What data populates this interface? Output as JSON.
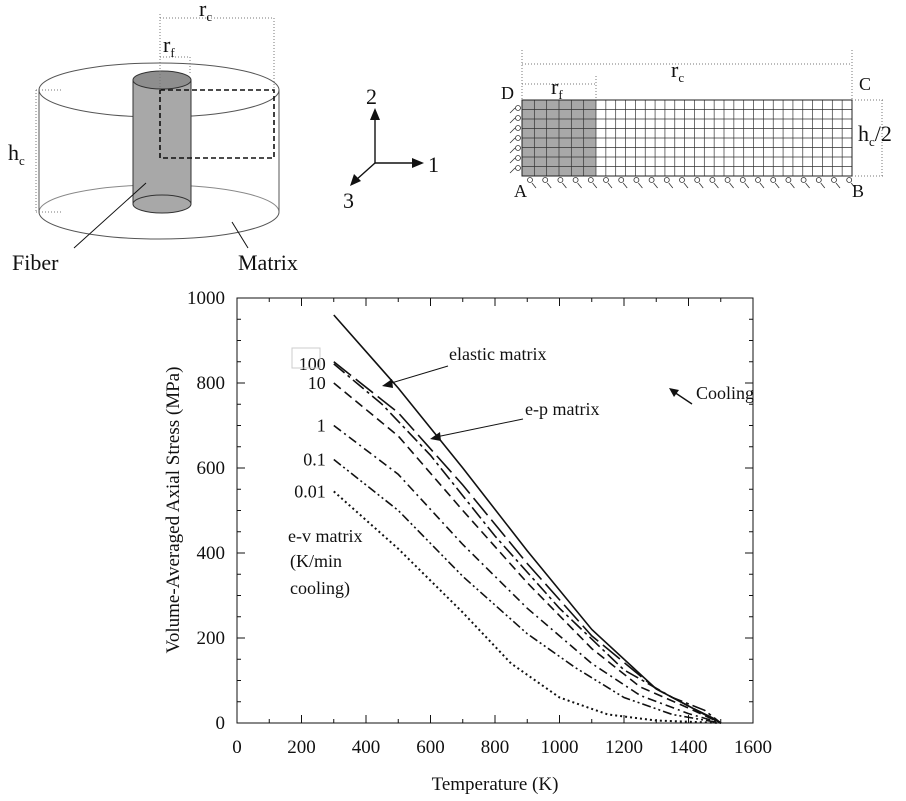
{
  "schematic": {
    "cylinder_labels": {
      "rc": "r",
      "rc_sub": "c",
      "rf": "r",
      "rf_sub": "f",
      "hc": "h",
      "hc_sub": "c",
      "fiber": "Fiber",
      "matrix": "Matrix"
    },
    "axes_labels": {
      "axis1": "1",
      "axis2": "2",
      "axis3": "3"
    },
    "mesh_labels": {
      "rc": "r",
      "rc_sub": "c",
      "rf": "r",
      "rf_sub": "f",
      "hc2": "h",
      "hc2_sub": "c",
      "hc2_suffix": "/2",
      "A": "A",
      "B": "B",
      "C": "C",
      "D": "D"
    }
  },
  "chart_data": {
    "type": "line",
    "xlabel": "Temperature (K)",
    "ylabel": "Volume-Averaged Axial Stress  (MPa)",
    "xlim": [
      0,
      1600
    ],
    "ylim": [
      0,
      1000
    ],
    "xticks": [
      "0",
      "200",
      "400",
      "600",
      "800",
      "1000",
      "1200",
      "1400",
      "1600"
    ],
    "yticks": [
      "0",
      "200",
      "400",
      "600",
      "800",
      "1000"
    ],
    "annotations": {
      "elastic": "elastic matrix",
      "ep": "e-p matrix",
      "cooling": "Cooling",
      "ev_line1": "e-v matrix",
      "ev_line2": "(K/min",
      "ev_line3": "cooling)"
    },
    "series": [
      {
        "name": "elastic matrix",
        "dash": "solid",
        "points": [
          [
            300,
            960
          ],
          [
            500,
            788
          ],
          [
            700,
            600
          ],
          [
            900,
            405
          ],
          [
            1100,
            220
          ],
          [
            1300,
            80
          ],
          [
            1450,
            20
          ],
          [
            1500,
            0
          ]
        ]
      },
      {
        "name": "e-p matrix",
        "dash": "longdash",
        "points": [
          [
            300,
            850
          ],
          [
            500,
            730
          ],
          [
            700,
            560
          ],
          [
            900,
            375
          ],
          [
            1100,
            205
          ],
          [
            1300,
            80
          ],
          [
            1400,
            40
          ],
          [
            1480,
            10
          ],
          [
            1500,
            0
          ]
        ]
      },
      {
        "name": "100",
        "dash": "dashdot",
        "points": [
          [
            300,
            845
          ],
          [
            450,
            750
          ],
          [
            600,
            630
          ],
          [
            800,
            440
          ],
          [
            1000,
            270
          ],
          [
            1200,
            125
          ],
          [
            1350,
            60
          ],
          [
            1450,
            30
          ],
          [
            1500,
            0
          ]
        ]
      },
      {
        "name": "10",
        "dash": "dash",
        "points": [
          [
            300,
            800
          ],
          [
            500,
            675
          ],
          [
            700,
            500
          ],
          [
            900,
            330
          ],
          [
            1100,
            175
          ],
          [
            1250,
            85
          ],
          [
            1400,
            35
          ],
          [
            1500,
            0
          ]
        ]
      },
      {
        "name": "1",
        "dash": "dashdot2",
        "points": [
          [
            300,
            700
          ],
          [
            500,
            585
          ],
          [
            700,
            420
          ],
          [
            900,
            270
          ],
          [
            1100,
            140
          ],
          [
            1250,
            65
          ],
          [
            1400,
            22
          ],
          [
            1500,
            0
          ]
        ]
      },
      {
        "name": "0.1",
        "dash": "dashdotdot",
        "points": [
          [
            300,
            620
          ],
          [
            500,
            500
          ],
          [
            700,
            345
          ],
          [
            900,
            210
          ],
          [
            1050,
            130
          ],
          [
            1200,
            60
          ],
          [
            1350,
            20
          ],
          [
            1500,
            0
          ]
        ]
      },
      {
        "name": "0.01",
        "dash": "dot",
        "points": [
          [
            300,
            545
          ],
          [
            500,
            410
          ],
          [
            700,
            260
          ],
          [
            850,
            140
          ],
          [
            1000,
            60
          ],
          [
            1150,
            20
          ],
          [
            1300,
            6
          ],
          [
            1500,
            0
          ]
        ]
      }
    ]
  }
}
